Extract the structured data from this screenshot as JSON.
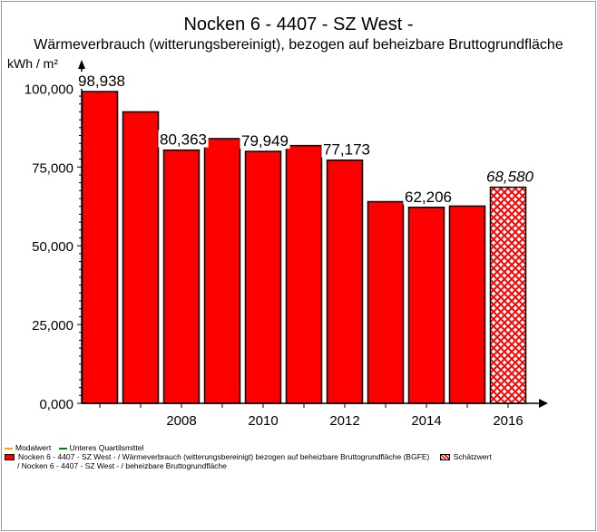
{
  "chart_data": {
    "type": "bar",
    "title": "Nocken 6 - 4407 - SZ West -",
    "subtitle": "Wärmeverbrauch (witterungsbereinigt), bezogen auf beheizbare Bruttogrundfläche",
    "ylabel": "kWh / m²",
    "xlabel": "",
    "x": [
      2006,
      2007,
      2008,
      2009,
      2010,
      2011,
      2012,
      2013,
      2014,
      2015,
      2016
    ],
    "values": [
      98.938,
      92.5,
      80.363,
      84.0,
      79.949,
      81.8,
      77.173,
      64.0,
      62.206,
      62.6,
      68.58
    ],
    "estimated": [
      false,
      false,
      false,
      false,
      false,
      false,
      false,
      false,
      false,
      false,
      true
    ],
    "data_labels": [
      {
        "index": 0,
        "text": "98,938",
        "italic": false
      },
      {
        "index": 2,
        "text": "80,363",
        "italic": false
      },
      {
        "index": 4,
        "text": "79,949",
        "italic": false
      },
      {
        "index": 6,
        "text": "77,173",
        "italic": false
      },
      {
        "index": 8,
        "text": "62,206",
        "italic": false
      },
      {
        "index": 10,
        "text": "68,580",
        "italic": true
      }
    ],
    "ylim": [
      0,
      105
    ],
    "yticks": [
      {
        "value": 0,
        "label": "0,000"
      },
      {
        "value": 25,
        "label": "25,000"
      },
      {
        "value": 50,
        "label": "50,000"
      },
      {
        "value": 75,
        "label": "75,000"
      },
      {
        "value": 100,
        "label": "100,000"
      }
    ],
    "xticks": [
      {
        "value": 2008,
        "label": "2008"
      },
      {
        "value": 2010,
        "label": "2010"
      },
      {
        "value": 2012,
        "label": "2012"
      },
      {
        "value": 2014,
        "label": "2014"
      },
      {
        "value": 2016,
        "label": "2016"
      }
    ],
    "grid": false,
    "colors": {
      "bar": "#ff0000",
      "estimate_hatch": "#ff0000",
      "modal": "#ffa500",
      "quartile": "#008000"
    }
  },
  "legend": {
    "modal": "Modalwert",
    "quartile": "Unteres Quartilsmittel",
    "series": "Nocken 6 - 4407 - SZ West - / Wärmeverbrauch (witterungsbereinigt) bezogen auf beheizbare Bruttogrundfläche (BGFE)",
    "series_line2": "/ Nocken 6 - 4407 - SZ West - / beheizbare Bruttogrundfläche",
    "estimate": "Schätzwert"
  }
}
